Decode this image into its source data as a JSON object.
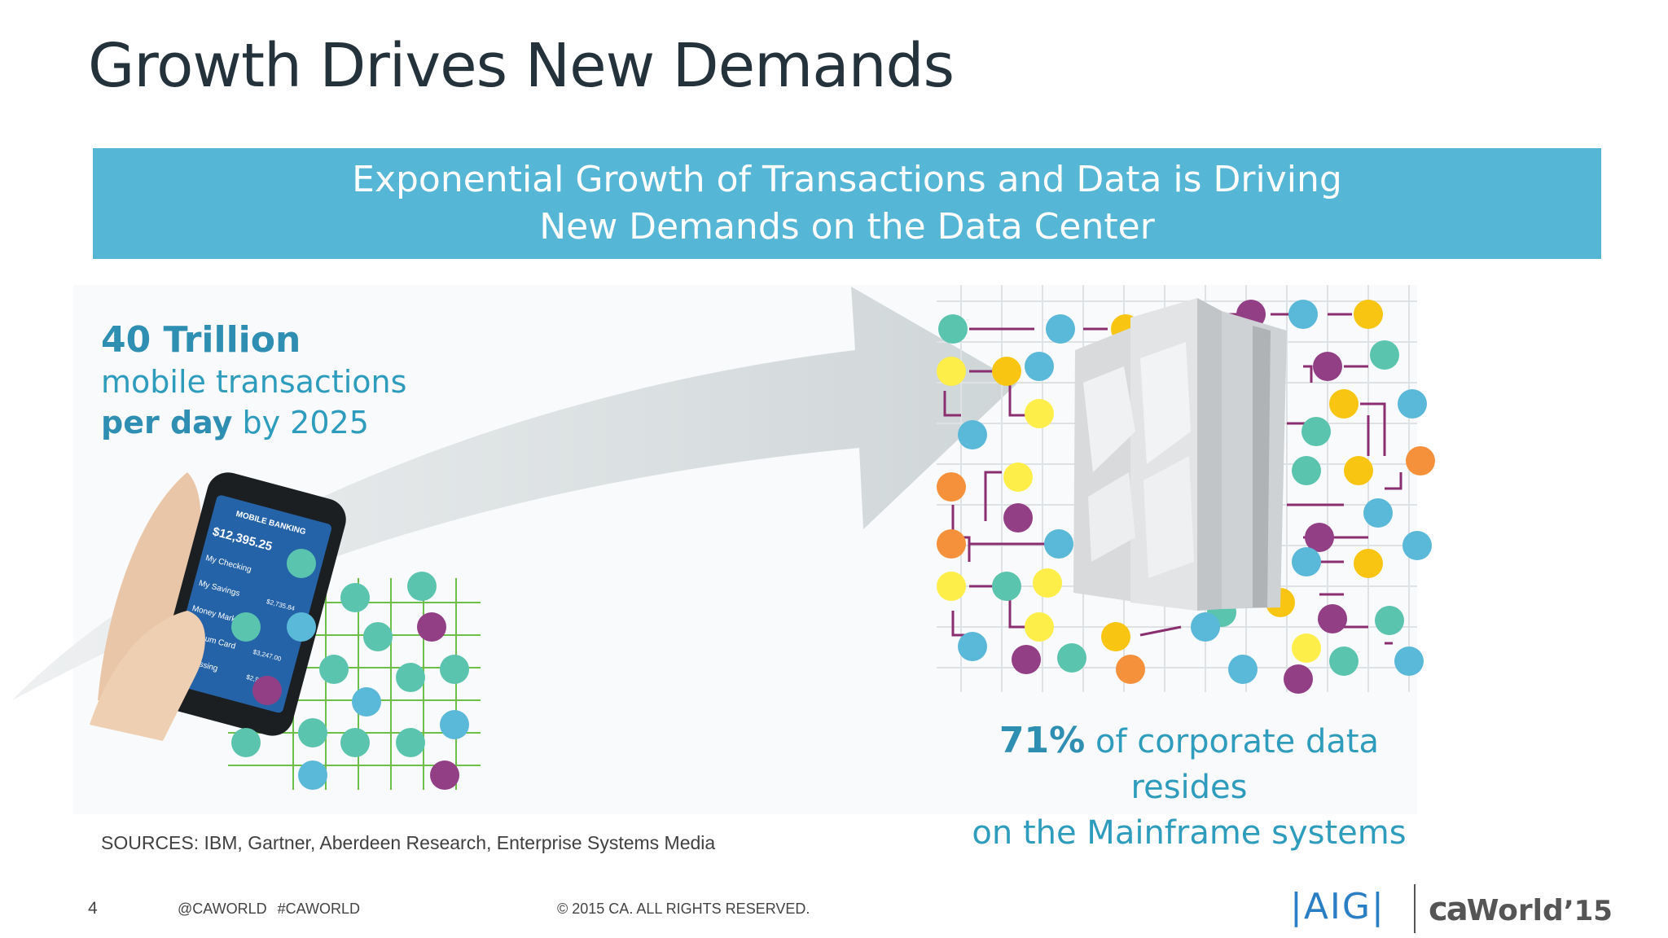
{
  "slide": {
    "title": "Growth Drives New Demands",
    "banner": {
      "line1": "Exponential Growth of Transactions and Data is Driving",
      "line2": "New Demands on the Data Center"
    },
    "stat_left": {
      "number": "40 Trillion",
      "line2": "mobile transactions",
      "line3_bold": "per day",
      "line3_rest": " by 2025"
    },
    "stat_right": {
      "percent": "71%",
      "line1_rest": " of corporate data resides",
      "line2": "on the Mainframe systems"
    },
    "sources": "SOURCES: IBM, Gartner, Aberdeen Research, Enterprise Systems Media",
    "phone_screen": {
      "header": "MOBILE BANKING",
      "balance": "$12,395.25",
      "rows": [
        "My Checking",
        "My Savings",
        "Money Market",
        "Platinum Card",
        "Processing"
      ],
      "amounts": [
        "$2,735.84",
        "$3,247.00",
        "$2,981.0"
      ]
    }
  },
  "footer": {
    "page_number": "4",
    "social": "@CAWORLD #CAWORLD",
    "copyright": "© 2015 CA. ALL RIGHTS RESERVED.",
    "logo_aig": "|AIG|",
    "logo_ca": "ca",
    "logo_world": "World",
    "logo_year": "’15"
  },
  "colors": {
    "banner": "#55b6d5",
    "accent_text": "#2e9cbd",
    "teal": "#5bc4ae",
    "blue": "#5ab8d9",
    "purple": "#923f86",
    "orange": "#f5913a",
    "yellow": "#fdee4a",
    "gold": "#f7c512"
  }
}
